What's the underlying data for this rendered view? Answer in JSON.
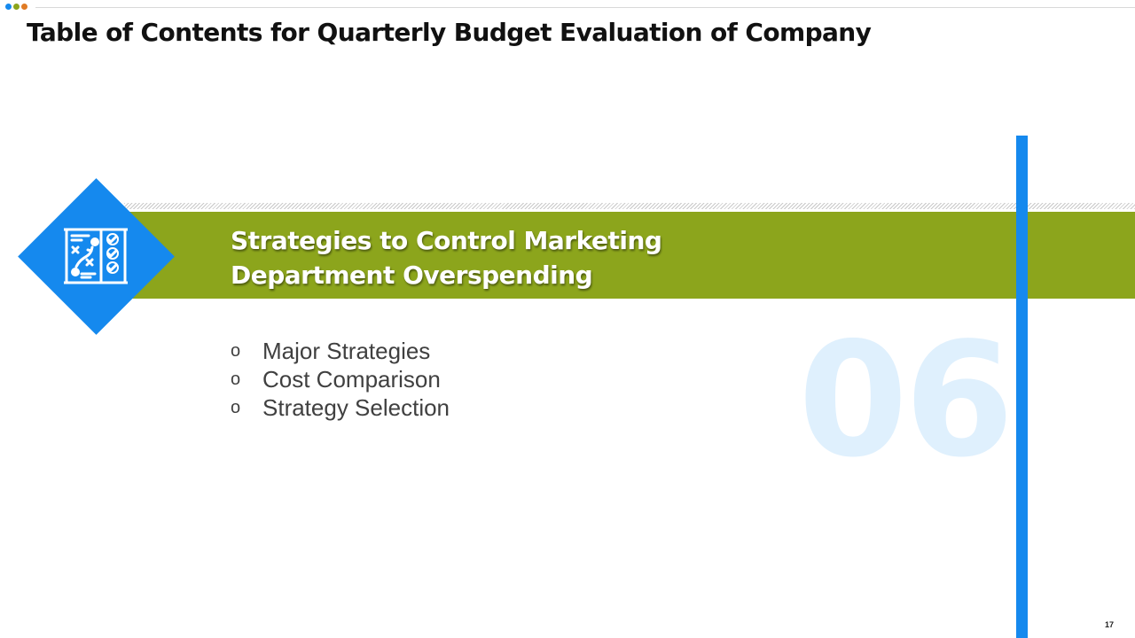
{
  "header": {
    "title": "Table of Contents for Quarterly Budget Evaluation of Company",
    "dot_colors": [
      "#1589ee",
      "#8ca51c",
      "#e07b24"
    ]
  },
  "section": {
    "number": "06",
    "title_line1": "Strategies to Control Marketing",
    "title_line2": "Department Overspending",
    "icon": "strategy-board-icon",
    "accent_color": "#1589ee",
    "band_color": "#8ca51c",
    "bullet_marker": "o",
    "items": [
      {
        "label": "Major Strategies"
      },
      {
        "label": "Cost Comparison"
      },
      {
        "label": "Strategy Selection"
      }
    ]
  },
  "footer": {
    "page_number": "17"
  }
}
